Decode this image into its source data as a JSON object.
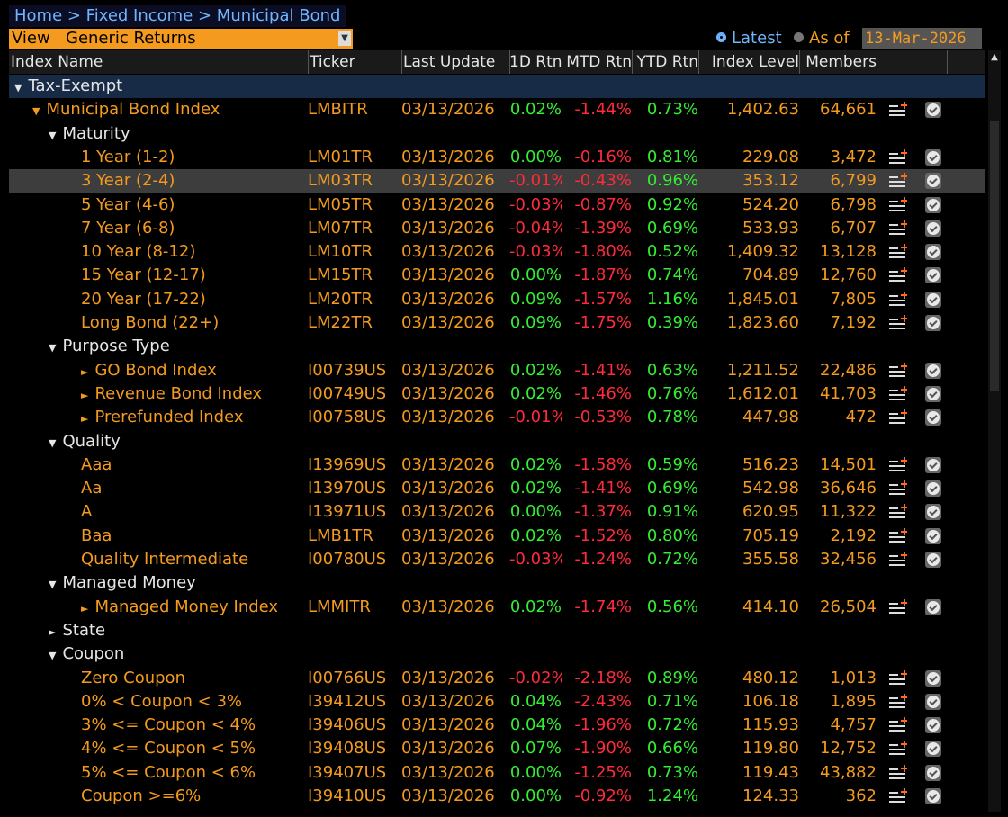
{
  "breadcrumb": "Home > Fixed Income > Municipal Bond",
  "view": {
    "label": "View",
    "selected": "Generic Returns"
  },
  "latest_label": "Latest",
  "asof_label": "As of",
  "asof_date": "13-Mar-2026",
  "columns": [
    "Index Name",
    "Ticker",
    "Last Update",
    "1D Rtn",
    "MTD Rtn",
    "YTD Rtn",
    "Index Level",
    "Members"
  ],
  "rows": [
    {
      "level": 0,
      "expand": "▼",
      "name": "Tax-Exempt",
      "section": true
    },
    {
      "level": 1,
      "expand": "▼",
      "name": "Municipal Bond Index",
      "ticker": "LMBITR",
      "date": "03/13/2026",
      "d1": "0.02%",
      "mtd": "-1.44%",
      "ytd": "0.73%",
      "lvl": "1,402.63",
      "mem": "64,661"
    },
    {
      "level": 2,
      "expand": "▼",
      "name": "Maturity",
      "white": true
    },
    {
      "level": 3,
      "name": "1 Year (1-2)",
      "ticker": "LM01TR",
      "date": "03/13/2026",
      "d1": "0.00%",
      "mtd": "-0.16%",
      "ytd": "0.81%",
      "lvl": "229.08",
      "mem": "3,472"
    },
    {
      "level": 3,
      "name": "3 Year (2-4)",
      "ticker": "LM03TR",
      "date": "03/13/2026",
      "d1": "-0.01%",
      "mtd": "-0.43%",
      "ytd": "0.96%",
      "lvl": "353.12",
      "mem": "6,799",
      "selected": true
    },
    {
      "level": 3,
      "name": "5 Year (4-6)",
      "ticker": "LM05TR",
      "date": "03/13/2026",
      "d1": "-0.03%",
      "mtd": "-0.87%",
      "ytd": "0.92%",
      "lvl": "524.20",
      "mem": "6,798"
    },
    {
      "level": 3,
      "name": "7 Year (6-8)",
      "ticker": "LM07TR",
      "date": "03/13/2026",
      "d1": "-0.04%",
      "mtd": "-1.39%",
      "ytd": "0.69%",
      "lvl": "533.93",
      "mem": "6,707"
    },
    {
      "level": 3,
      "name": "10 Year (8-12)",
      "ticker": "LM10TR",
      "date": "03/13/2026",
      "d1": "-0.03%",
      "mtd": "-1.80%",
      "ytd": "0.52%",
      "lvl": "1,409.32",
      "mem": "13,128"
    },
    {
      "level": 3,
      "name": "15 Year (12-17)",
      "ticker": "LM15TR",
      "date": "03/13/2026",
      "d1": "0.00%",
      "mtd": "-1.87%",
      "ytd": "0.74%",
      "lvl": "704.89",
      "mem": "12,760"
    },
    {
      "level": 3,
      "name": "20 Year (17-22)",
      "ticker": "LM20TR",
      "date": "03/13/2026",
      "d1": "0.09%",
      "mtd": "-1.57%",
      "ytd": "1.16%",
      "lvl": "1,845.01",
      "mem": "7,805"
    },
    {
      "level": 3,
      "name": "Long Bond (22+)",
      "ticker": "LM22TR",
      "date": "03/13/2026",
      "d1": "0.09%",
      "mtd": "-1.75%",
      "ytd": "0.39%",
      "lvl": "1,823.60",
      "mem": "7,192"
    },
    {
      "level": 2,
      "expand": "▼",
      "name": "Purpose Type",
      "white": true
    },
    {
      "level": 3,
      "expand": "►",
      "name": "GO Bond Index",
      "ticker": "I00739US",
      "date": "03/13/2026",
      "d1": "0.02%",
      "mtd": "-1.41%",
      "ytd": "0.63%",
      "lvl": "1,211.52",
      "mem": "22,486"
    },
    {
      "level": 3,
      "expand": "►",
      "name": "Revenue Bond Index",
      "ticker": "I00749US",
      "date": "03/13/2026",
      "d1": "0.02%",
      "mtd": "-1.46%",
      "ytd": "0.76%",
      "lvl": "1,612.01",
      "mem": "41,703"
    },
    {
      "level": 3,
      "expand": "►",
      "name": "Prerefunded Index",
      "ticker": "I00758US",
      "date": "03/13/2026",
      "d1": "-0.01%",
      "mtd": "-0.53%",
      "ytd": "0.78%",
      "lvl": "447.98",
      "mem": "472"
    },
    {
      "level": 2,
      "expand": "▼",
      "name": "Quality",
      "white": true
    },
    {
      "level": 3,
      "name": "Aaa",
      "ticker": "I13969US",
      "date": "03/13/2026",
      "d1": "0.02%",
      "mtd": "-1.58%",
      "ytd": "0.59%",
      "lvl": "516.23",
      "mem": "14,501"
    },
    {
      "level": 3,
      "name": "Aa",
      "ticker": "I13970US",
      "date": "03/13/2026",
      "d1": "0.02%",
      "mtd": "-1.41%",
      "ytd": "0.69%",
      "lvl": "542.98",
      "mem": "36,646"
    },
    {
      "level": 3,
      "name": "A",
      "ticker": "I13971US",
      "date": "03/13/2026",
      "d1": "0.00%",
      "mtd": "-1.37%",
      "ytd": "0.91%",
      "lvl": "620.95",
      "mem": "11,322"
    },
    {
      "level": 3,
      "name": "Baa",
      "ticker": "LMB1TR",
      "date": "03/13/2026",
      "d1": "0.02%",
      "mtd": "-1.52%",
      "ytd": "0.80%",
      "lvl": "705.19",
      "mem": "2,192"
    },
    {
      "level": 3,
      "name": "Quality Intermediate",
      "ticker": "I00780US",
      "date": "03/13/2026",
      "d1": "-0.03%",
      "mtd": "-1.24%",
      "ytd": "0.72%",
      "lvl": "355.58",
      "mem": "32,456"
    },
    {
      "level": 2,
      "expand": "▼",
      "name": "Managed Money",
      "white": true
    },
    {
      "level": 3,
      "expand": "►",
      "name": "Managed Money Index",
      "ticker": "LMMITR",
      "date": "03/13/2026",
      "d1": "0.02%",
      "mtd": "-1.74%",
      "ytd": "0.56%",
      "lvl": "414.10",
      "mem": "26,504"
    },
    {
      "level": 2,
      "expand": "►",
      "name": "State",
      "white": true
    },
    {
      "level": 2,
      "expand": "▼",
      "name": "Coupon",
      "white": true
    },
    {
      "level": 3,
      "name": "Zero Coupon",
      "ticker": "I00766US",
      "date": "03/13/2026",
      "d1": "-0.02%",
      "mtd": "-2.18%",
      "ytd": "0.89%",
      "lvl": "480.12",
      "mem": "1,013"
    },
    {
      "level": 3,
      "name": "0% < Coupon < 3%",
      "ticker": "I39412US",
      "date": "03/13/2026",
      "d1": "0.04%",
      "mtd": "-2.43%",
      "ytd": "0.71%",
      "lvl": "106.18",
      "mem": "1,895"
    },
    {
      "level": 3,
      "name": "3% <= Coupon < 4%",
      "ticker": "I39406US",
      "date": "03/13/2026",
      "d1": "0.04%",
      "mtd": "-1.96%",
      "ytd": "0.72%",
      "lvl": "115.93",
      "mem": "4,757"
    },
    {
      "level": 3,
      "name": "4% <= Coupon < 5%",
      "ticker": "I39408US",
      "date": "03/13/2026",
      "d1": "0.07%",
      "mtd": "-1.90%",
      "ytd": "0.66%",
      "lvl": "119.80",
      "mem": "12,752"
    },
    {
      "level": 3,
      "name": "5% <= Coupon < 6%",
      "ticker": "I39407US",
      "date": "03/13/2026",
      "d1": "0.00%",
      "mtd": "-1.25%",
      "ytd": "0.73%",
      "lvl": "119.43",
      "mem": "43,882"
    },
    {
      "level": 3,
      "name": "Coupon >=6%",
      "ticker": "I39410US",
      "date": "03/13/2026",
      "d1": "0.00%",
      "mtd": "-0.92%",
      "ytd": "1.24%",
      "lvl": "124.33",
      "mem": "362"
    }
  ],
  "colors": {
    "orange": "#f49b1f",
    "positive": "#33ee33",
    "negative": "#ff2a3a",
    "link": "#6fb6ff",
    "section_bg": "#172b46"
  },
  "icons": {
    "add": "add-to-list-icon",
    "chart": "chart-check-icon"
  }
}
